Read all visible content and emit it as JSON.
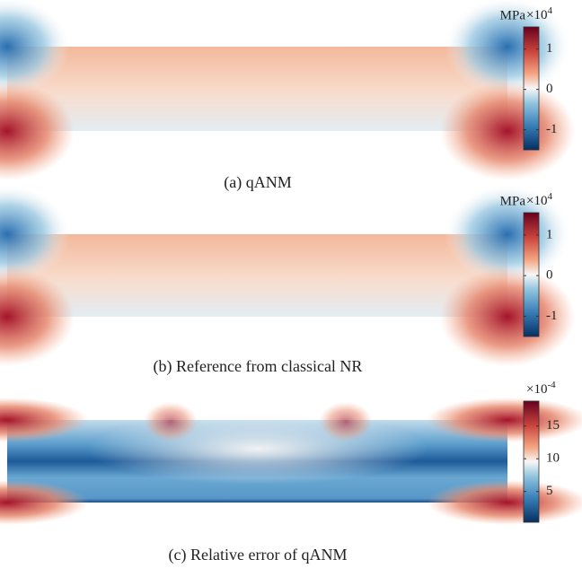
{
  "figure": {
    "panels": [
      {
        "caption": "(a) qANM",
        "colorbar": {
          "unit": "MPa",
          "base": "×10",
          "exponent": "4",
          "lim": [
            -1.5,
            1.55
          ],
          "ticks": [
            -1,
            0,
            1
          ]
        }
      },
      {
        "caption": "(b) Reference from classical NR",
        "colorbar": {
          "unit": "MPa",
          "base": "×10",
          "exponent": "4",
          "lim": [
            -1.5,
            1.55
          ],
          "ticks": [
            -1,
            0,
            1
          ]
        }
      },
      {
        "caption": "(c) Relative error of qANM",
        "colorbar": {
          "base": "×10",
          "exponent": "-4",
          "lim": [
            0.3,
            18.8
          ],
          "ticks": [
            5,
            10,
            15
          ]
        }
      }
    ]
  }
}
